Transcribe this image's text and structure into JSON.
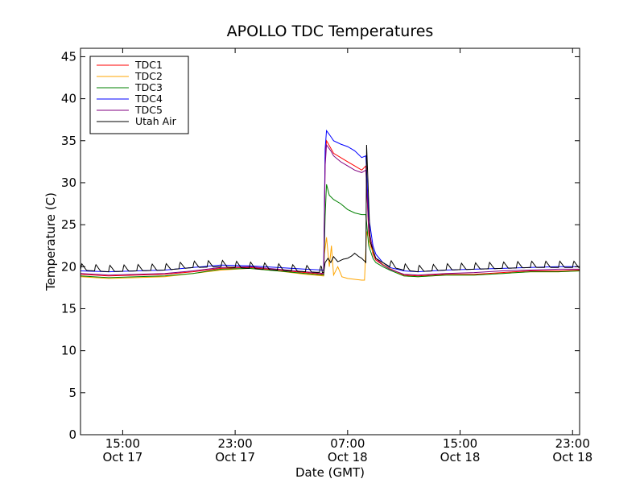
{
  "chart_data": {
    "type": "line",
    "title": "APOLLO TDC Temperatures",
    "xlabel": "Date (GMT)",
    "ylabel": "Temperature (C)",
    "xlim": [
      12.0,
      47.5
    ],
    "ylim": [
      0,
      46
    ],
    "x_units": "hours since Oct 17 00:00 GMT",
    "grid": false,
    "legend_position": "top-left",
    "y_ticks": [
      0,
      5,
      10,
      15,
      20,
      25,
      30,
      35,
      40,
      45
    ],
    "x_ticks": [
      {
        "value": 15,
        "time": "15:00",
        "date": "Oct 17"
      },
      {
        "value": 23,
        "time": "23:00",
        "date": "Oct 17"
      },
      {
        "value": 31,
        "time": "07:00",
        "date": "Oct 18"
      },
      {
        "value": 39,
        "time": "15:00",
        "date": "Oct 18"
      },
      {
        "value": 47,
        "time": "23:00",
        "date": "Oct 18"
      }
    ],
    "series": [
      {
        "name": "TDC1",
        "color": "#ff0000",
        "x": [
          12.0,
          14,
          16,
          18,
          20,
          22,
          24,
          26,
          28,
          29.3,
          29.4,
          29.5,
          30,
          31,
          31.5,
          32,
          32.3,
          32.5,
          32.8,
          33,
          33.5,
          34,
          35,
          36,
          37,
          38,
          40,
          42,
          44,
          46,
          47.5
        ],
        "y": [
          19.1,
          18.9,
          19.0,
          19.1,
          19.4,
          19.8,
          19.9,
          19.6,
          19.3,
          19.1,
          33.0,
          35.0,
          33.5,
          32.5,
          32.0,
          31.5,
          32.0,
          24.0,
          21.5,
          20.8,
          20.2,
          19.8,
          19.0,
          18.9,
          19.0,
          19.1,
          19.1,
          19.3,
          19.5,
          19.5,
          19.6
        ]
      },
      {
        "name": "TDC2",
        "color": "#ffa500",
        "x": [
          12.0,
          14,
          16,
          18,
          20,
          22,
          24,
          26,
          28,
          29.3,
          29.35,
          29.5,
          29.7,
          29.85,
          30.0,
          30.3,
          30.6,
          31.0,
          31.5,
          32.0,
          32.2,
          32.35,
          32.6,
          33,
          33.5,
          34,
          35,
          36,
          37,
          38,
          40,
          42,
          44,
          46,
          47.5
        ],
        "y": [
          18.8,
          18.6,
          18.7,
          18.8,
          19.2,
          19.6,
          19.8,
          19.5,
          19.1,
          18.9,
          21.5,
          23.5,
          20.0,
          22.5,
          19.0,
          20.0,
          18.8,
          18.6,
          18.5,
          18.4,
          18.4,
          24.2,
          22.5,
          21.0,
          20.3,
          19.8,
          18.9,
          18.8,
          18.9,
          19.0,
          19.0,
          19.2,
          19.4,
          19.4,
          19.5
        ]
      },
      {
        "name": "TDC3",
        "color": "#008000",
        "x": [
          12.0,
          14,
          16,
          18,
          20,
          22,
          24,
          26,
          28,
          29.3,
          29.4,
          29.5,
          29.7,
          30,
          30.5,
          31,
          31.5,
          32,
          32.3,
          32.5,
          32.8,
          33,
          33.5,
          34,
          35,
          36,
          37,
          38,
          40,
          42,
          44,
          46,
          47.5
        ],
        "y": [
          18.9,
          18.7,
          18.8,
          18.9,
          19.2,
          19.7,
          19.8,
          19.5,
          19.2,
          19.0,
          26.0,
          29.8,
          28.5,
          28.0,
          27.5,
          26.8,
          26.4,
          26.2,
          26.2,
          22.5,
          21.0,
          20.5,
          20.0,
          19.6,
          18.9,
          18.8,
          18.9,
          19.0,
          19.0,
          19.2,
          19.4,
          19.4,
          19.5
        ]
      },
      {
        "name": "TDC4",
        "color": "#0000ff",
        "x": [
          12.0,
          14,
          16,
          18,
          20,
          22,
          24,
          26,
          28,
          29.3,
          29.4,
          29.5,
          29.8,
          30,
          30.5,
          31,
          31.5,
          32,
          32.3,
          32.5,
          32.8,
          33,
          33.5,
          34,
          35,
          36,
          37,
          38,
          40,
          42,
          44,
          46,
          47.5
        ],
        "y": [
          19.5,
          19.4,
          19.5,
          19.6,
          19.9,
          20.2,
          20.1,
          19.9,
          19.7,
          19.6,
          34.0,
          36.2,
          35.5,
          35.0,
          34.6,
          34.3,
          33.8,
          33.0,
          33.2,
          26.0,
          22.5,
          21.5,
          20.5,
          19.9,
          19.5,
          19.4,
          19.5,
          19.6,
          19.7,
          19.8,
          19.9,
          20.0,
          20.0
        ]
      },
      {
        "name": "TDC5",
        "color": "#800080",
        "x": [
          12.0,
          14,
          16,
          18,
          20,
          22,
          24,
          26,
          28,
          29.3,
          29.4,
          29.5,
          29.8,
          30,
          30.5,
          31,
          31.5,
          32,
          32.3,
          32.5,
          32.8,
          33,
          33.5,
          34,
          35,
          36,
          37,
          38,
          40,
          42,
          44,
          46,
          47.5
        ],
        "y": [
          19.2,
          19.0,
          19.1,
          19.2,
          19.5,
          19.9,
          20.0,
          19.7,
          19.4,
          19.2,
          32.0,
          34.5,
          33.8,
          33.2,
          32.5,
          32.0,
          31.5,
          31.2,
          31.5,
          24.5,
          22.0,
          21.0,
          20.2,
          19.7,
          19.1,
          19.0,
          19.1,
          19.2,
          19.3,
          19.5,
          19.6,
          19.7,
          19.7
        ]
      },
      {
        "name": "Utah Air",
        "color": "#000000",
        "x": [
          12.0,
          14,
          16,
          18,
          20,
          22,
          24,
          26,
          28,
          29.3,
          29.4,
          29.6,
          29.8,
          30.0,
          30.3,
          30.7,
          31.0,
          31.3,
          31.5,
          31.8,
          32.0,
          32.3,
          32.35,
          32.6,
          33,
          33.5,
          34,
          35,
          36,
          37,
          38,
          40,
          42,
          44,
          46,
          47.5
        ],
        "y": [
          19.6,
          19.4,
          19.5,
          19.6,
          19.9,
          20.0,
          19.8,
          19.6,
          19.4,
          19.3,
          20.5,
          21.0,
          20.5,
          21.2,
          20.6,
          20.9,
          21.0,
          21.3,
          21.6,
          21.2,
          21.0,
          20.5,
          34.5,
          23.0,
          21.0,
          20.5,
          20.0,
          19.6,
          19.4,
          19.5,
          19.6,
          19.7,
          19.8,
          19.9,
          19.9,
          19.9
        ],
        "spike_period_hours": 1.0,
        "spike_amplitude": 0.8
      }
    ]
  }
}
